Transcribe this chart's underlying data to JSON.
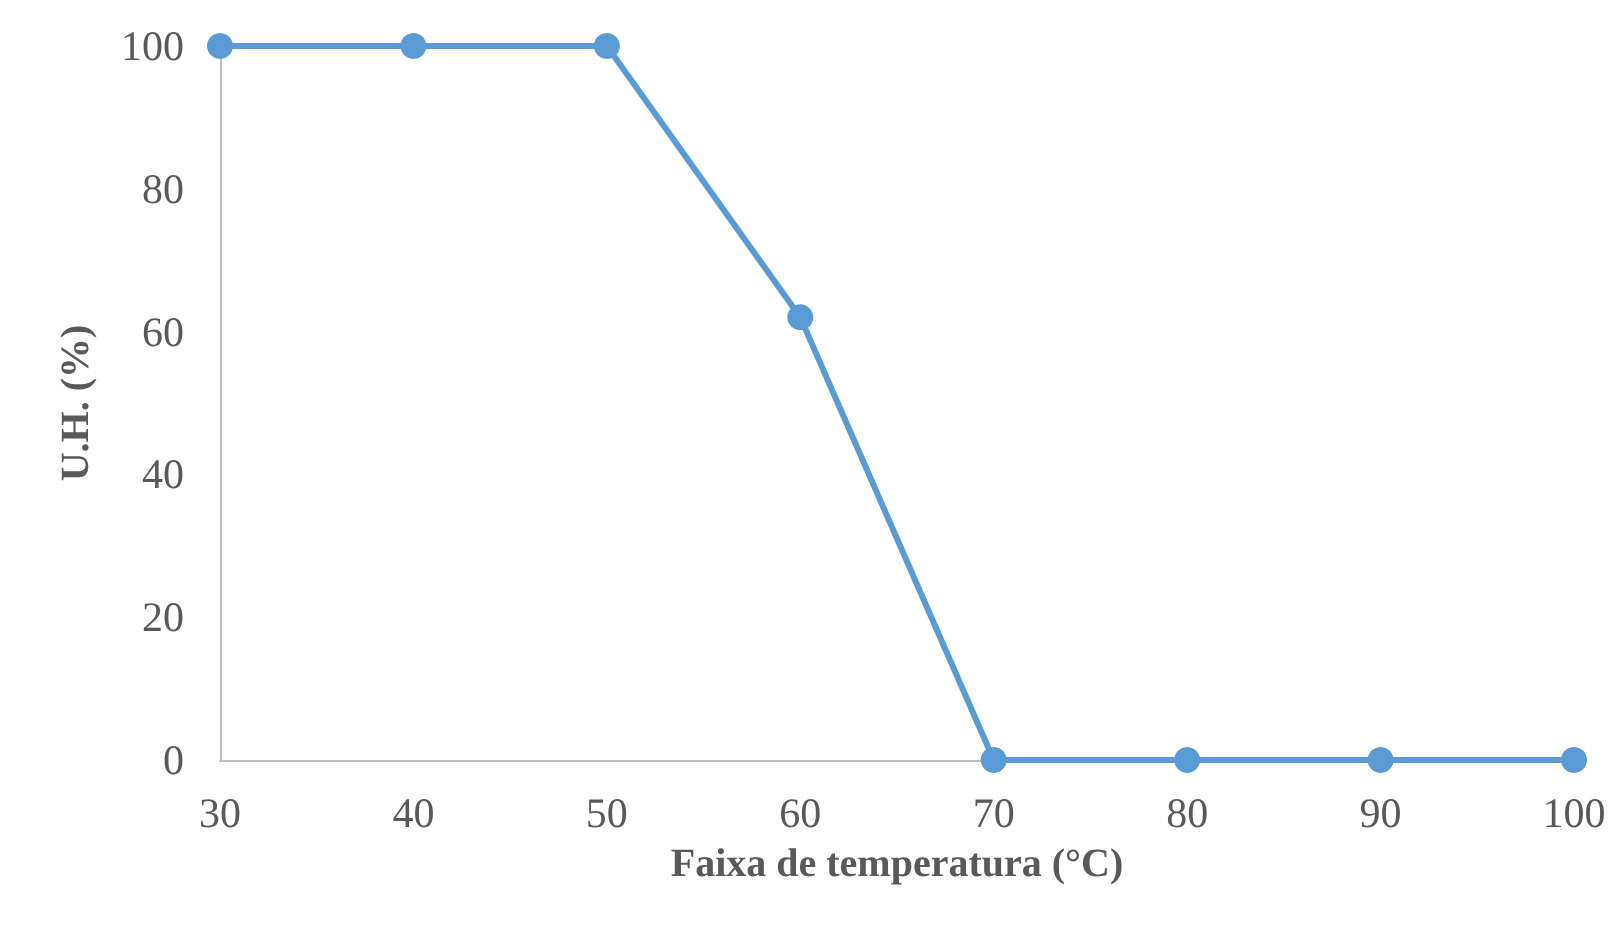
{
  "chart_data": {
    "type": "line",
    "xlabel": "Faixa de temperatura (°C)",
    "ylabel": "U.H. (%)",
    "x": [
      30,
      40,
      50,
      60,
      70,
      80,
      90,
      100
    ],
    "series": [
      {
        "color": "#5b9bd5",
        "values": [
          100,
          100,
          100,
          62,
          0,
          0,
          0,
          0
        ]
      }
    ],
    "xlim": [
      30,
      100
    ],
    "xticks": [
      30,
      40,
      50,
      60,
      70,
      80,
      90,
      100
    ],
    "ylim": [
      0,
      100
    ],
    "yticks": [
      0,
      20,
      40,
      60,
      80,
      100
    ],
    "grid": false,
    "marker": "circle",
    "line_style": "solid"
  }
}
